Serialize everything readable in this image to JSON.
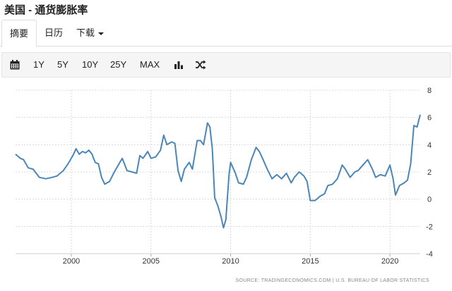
{
  "page": {
    "title": "美国 - 通货膨胀率"
  },
  "tabs": [
    {
      "label": "摘要"
    },
    {
      "label": "日历"
    },
    {
      "label": "下载"
    }
  ],
  "toolbar": {
    "icons": [
      "calendar-icon",
      "bar-chart-icon",
      "shuffle-icon"
    ],
    "ranges": [
      "1Y",
      "5Y",
      "10Y",
      "25Y",
      "MAX"
    ]
  },
  "chart_data": {
    "type": "line",
    "title": "",
    "xlabel": "",
    "ylabel": "",
    "xlim": [
      1996.5,
      2021.9
    ],
    "ylim": [
      -4,
      8
    ],
    "x_ticks": [
      "2000",
      "2005",
      "2010",
      "2015",
      "2020"
    ],
    "y_ticks": [
      "8",
      "6",
      "4",
      "2",
      "0",
      "-2",
      "-4"
    ],
    "grid": true,
    "color": "#4a86b8",
    "source": "SOURCE: TRADINGECONOMICS.COM | U.S. BUREAU OF LABOR STATISTICS",
    "series": [
      {
        "x": [
          1996.5,
          1996.8,
          1997.0,
          1997.3,
          1997.6,
          1998.0,
          1998.4,
          1998.8,
          1999.1,
          1999.5,
          1999.8,
          2000.1,
          2000.3,
          2000.5,
          2000.7,
          2000.9,
          2001.1,
          2001.3,
          2001.5,
          2001.7,
          2001.9,
          2002.1,
          2002.4,
          2002.7,
          2003.0,
          2003.2,
          2003.5,
          2003.8,
          2004.1,
          2004.3,
          2004.5,
          2004.8,
          2005.0,
          2005.3,
          2005.6,
          2005.8,
          2006.0,
          2006.3,
          2006.5,
          2006.7,
          2006.9,
          2007.1,
          2007.4,
          2007.6,
          2007.9,
          2008.1,
          2008.3,
          2008.55,
          2008.7,
          2008.85,
          2009.0,
          2009.2,
          2009.4,
          2009.55,
          2009.7,
          2009.9,
          2010.0,
          2010.3,
          2010.5,
          2010.8,
          2011.0,
          2011.3,
          2011.6,
          2011.8,
          2012.0,
          2012.3,
          2012.6,
          2012.9,
          2013.2,
          2013.5,
          2013.8,
          2014.0,
          2014.3,
          2014.6,
          2014.8,
          2015.0,
          2015.3,
          2015.6,
          2015.9,
          2016.1,
          2016.4,
          2016.7,
          2017.0,
          2017.2,
          2017.5,
          2017.8,
          2018.0,
          2018.3,
          2018.6,
          2018.9,
          2019.1,
          2019.4,
          2019.7,
          2020.0,
          2020.2,
          2020.35,
          2020.6,
          2020.9,
          2021.1,
          2021.3,
          2021.5,
          2021.7,
          2021.9
        ],
        "y": [
          3.3,
          3.0,
          2.9,
          2.3,
          2.2,
          1.6,
          1.5,
          1.6,
          1.7,
          2.1,
          2.6,
          3.2,
          3.7,
          3.3,
          3.5,
          3.4,
          3.6,
          3.3,
          2.7,
          2.6,
          1.6,
          1.1,
          1.3,
          2.0,
          2.6,
          3.0,
          2.1,
          2.0,
          1.9,
          3.2,
          3.0,
          3.5,
          3.0,
          3.1,
          3.6,
          4.7,
          4.0,
          4.2,
          4.1,
          2.1,
          1.3,
          2.2,
          2.7,
          2.2,
          4.3,
          4.3,
          4.0,
          5.6,
          5.3,
          3.7,
          0.1,
          -0.5,
          -1.3,
          -2.1,
          -1.5,
          1.8,
          2.7,
          1.9,
          1.2,
          1.1,
          1.6,
          2.9,
          3.8,
          3.5,
          3.0,
          2.2,
          1.5,
          1.8,
          1.5,
          1.9,
          1.2,
          1.6,
          2.0,
          1.7,
          1.3,
          -0.1,
          -0.1,
          0.2,
          0.4,
          1.0,
          1.1,
          1.5,
          2.5,
          2.2,
          1.6,
          2.0,
          2.1,
          2.5,
          2.9,
          2.2,
          1.6,
          1.8,
          1.7,
          2.5,
          1.5,
          0.3,
          1.0,
          1.2,
          1.4,
          2.6,
          5.4,
          5.3,
          6.2
        ]
      }
    ]
  }
}
